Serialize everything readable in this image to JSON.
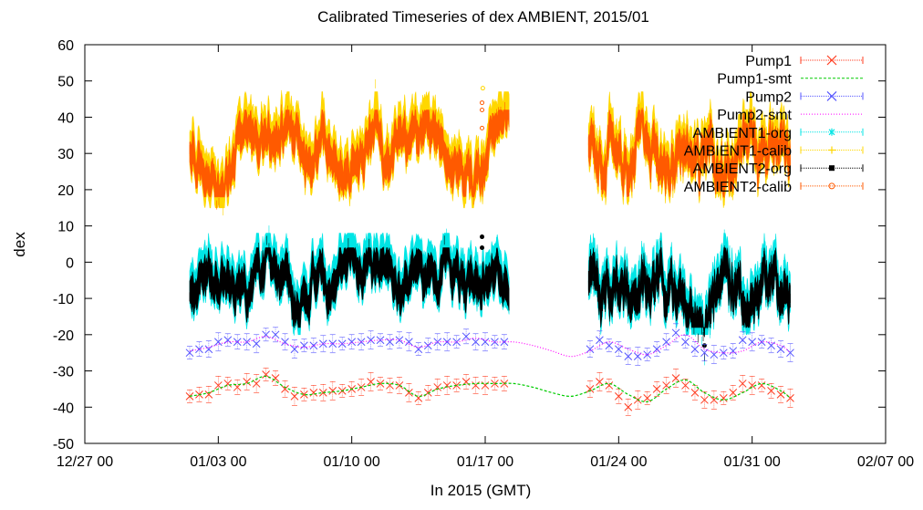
{
  "chart_data": {
    "type": "line",
    "title": "Calibrated Timeseries of dex AMBIENT, 2015/01",
    "xlabel": "In 2015 (GMT)",
    "ylabel": "dex",
    "xlim": [
      "2014-12-27 00:00",
      "2015-02-07 00:00"
    ],
    "ylim": [
      -50,
      60
    ],
    "yticks": [
      -50,
      -40,
      -30,
      -20,
      -10,
      0,
      10,
      20,
      30,
      40,
      50,
      60
    ],
    "xticks": [
      {
        "at": "2014-12-27 00:00",
        "label": "12/27 00"
      },
      {
        "at": "2015-01-03 00:00",
        "label": "01/03 00"
      },
      {
        "at": "2015-01-10 00:00",
        "label": "01/10 00"
      },
      {
        "at": "2015-01-17 00:00",
        "label": "01/17 00"
      },
      {
        "at": "2015-01-24 00:00",
        "label": "01/24 00"
      },
      {
        "at": "2015-01-31 00:00",
        "label": "01/31 00"
      },
      {
        "at": "2015-02-07 00:00",
        "label": "02/07 00"
      }
    ],
    "grid": false,
    "legend_position": "top-right",
    "data_gap": [
      "2015-01-18 06:00",
      "2015-01-22 10:00"
    ],
    "series": [
      {
        "name": "Pump1",
        "color": "#ff3b1f",
        "style": "points-errorbars",
        "marker": "x",
        "x": [
          "2015-01-01 12:00",
          "2015-01-02 00:00",
          "2015-01-02 12:00",
          "2015-01-03 00:00",
          "2015-01-03 12:00",
          "2015-01-04 00:00",
          "2015-01-04 12:00",
          "2015-01-05 00:00",
          "2015-01-05 12:00",
          "2015-01-06 00:00",
          "2015-01-06 12:00",
          "2015-01-07 00:00",
          "2015-01-07 12:00",
          "2015-01-08 00:00",
          "2015-01-08 12:00",
          "2015-01-09 00:00",
          "2015-01-09 12:00",
          "2015-01-10 00:00",
          "2015-01-10 12:00",
          "2015-01-11 00:00",
          "2015-01-11 12:00",
          "2015-01-12 00:00",
          "2015-01-12 12:00",
          "2015-01-13 00:00",
          "2015-01-13 12:00",
          "2015-01-14 00:00",
          "2015-01-14 12:00",
          "2015-01-15 00:00",
          "2015-01-15 12:00",
          "2015-01-16 00:00",
          "2015-01-16 12:00",
          "2015-01-17 00:00",
          "2015-01-17 12:00",
          "2015-01-18 00:00",
          "2015-01-22 12:00",
          "2015-01-23 00:00",
          "2015-01-23 12:00",
          "2015-01-24 00:00",
          "2015-01-24 12:00",
          "2015-01-25 00:00",
          "2015-01-25 12:00",
          "2015-01-26 00:00",
          "2015-01-26 12:00",
          "2015-01-27 00:00",
          "2015-01-27 12:00",
          "2015-01-28 00:00",
          "2015-01-28 12:00",
          "2015-01-29 00:00",
          "2015-01-29 12:00",
          "2015-01-30 00:00",
          "2015-01-30 12:00",
          "2015-01-31 00:00",
          "2015-01-31 12:00",
          "2015-02-01 00:00",
          "2015-02-01 12:00",
          "2015-02-02 00:00"
        ],
        "y": [
          -37,
          -36.5,
          -36.5,
          -34,
          -33.5,
          -34.5,
          -33,
          -33.5,
          -31,
          -32,
          -35,
          -37,
          -36.5,
          -36,
          -36,
          -35.5,
          -35.5,
          -35,
          -34.5,
          -33,
          -33.5,
          -34,
          -34,
          -36,
          -37.5,
          -36,
          -34.5,
          -34,
          -34,
          -33,
          -34,
          -34,
          -33.5,
          -33.5,
          -35,
          -33,
          -34,
          -37,
          -40,
          -38,
          -37.5,
          -35,
          -34,
          -32,
          -34,
          -36,
          -38,
          -38,
          -37.5,
          -36,
          -33.5,
          -34,
          -34,
          -35.5,
          -36.5,
          -37.5
        ]
      },
      {
        "name": "Pump1-smt",
        "color": "#00cc00",
        "style": "dashed-line",
        "x": [
          "2015-01-01 12:00",
          "2015-01-02 12:00",
          "2015-01-03 12:00",
          "2015-01-04 12:00",
          "2015-01-05 12:00",
          "2015-01-06 12:00",
          "2015-01-07 12:00",
          "2015-01-08 12:00",
          "2015-01-09 12:00",
          "2015-01-10 12:00",
          "2015-01-11 12:00",
          "2015-01-12 12:00",
          "2015-01-13 12:00",
          "2015-01-14 12:00",
          "2015-01-15 12:00",
          "2015-01-16 12:00",
          "2015-01-17 12:00",
          "2015-01-18 12:00",
          "2015-01-19 12:00",
          "2015-01-20 12:00",
          "2015-01-21 12:00",
          "2015-01-22 12:00",
          "2015-01-23 12:00",
          "2015-01-24 12:00",
          "2015-01-25 12:00",
          "2015-01-26 12:00",
          "2015-01-27 12:00",
          "2015-01-28 12:00",
          "2015-01-29 12:00",
          "2015-01-30 12:00",
          "2015-01-31 12:00",
          "2015-02-01 12:00",
          "2015-02-02 00:00"
        ],
        "y": [
          -37,
          -36,
          -34,
          -33.5,
          -31.5,
          -34.5,
          -36.5,
          -36,
          -35.5,
          -34.5,
          -33.5,
          -34,
          -37,
          -35,
          -34,
          -33.5,
          -33.5,
          -33.5,
          -34.5,
          -36,
          -37,
          -35.5,
          -33.5,
          -36.5,
          -38.5,
          -35,
          -32.5,
          -36,
          -38,
          -36,
          -33.5,
          -35.5,
          -37.5
        ]
      },
      {
        "name": "Pump2",
        "color": "#5555ff",
        "style": "points-errorbars",
        "marker": "x",
        "x": [
          "2015-01-01 12:00",
          "2015-01-02 00:00",
          "2015-01-02 12:00",
          "2015-01-03 00:00",
          "2015-01-03 12:00",
          "2015-01-04 00:00",
          "2015-01-04 12:00",
          "2015-01-05 00:00",
          "2015-01-05 12:00",
          "2015-01-06 00:00",
          "2015-01-06 12:00",
          "2015-01-07 00:00",
          "2015-01-07 12:00",
          "2015-01-08 00:00",
          "2015-01-08 12:00",
          "2015-01-09 00:00",
          "2015-01-09 12:00",
          "2015-01-10 00:00",
          "2015-01-10 12:00",
          "2015-01-11 00:00",
          "2015-01-11 12:00",
          "2015-01-12 00:00",
          "2015-01-12 12:00",
          "2015-01-13 00:00",
          "2015-01-13 12:00",
          "2015-01-14 00:00",
          "2015-01-14 12:00",
          "2015-01-15 00:00",
          "2015-01-15 12:00",
          "2015-01-16 00:00",
          "2015-01-16 12:00",
          "2015-01-17 00:00",
          "2015-01-17 12:00",
          "2015-01-18 00:00",
          "2015-01-22 12:00",
          "2015-01-23 00:00",
          "2015-01-23 12:00",
          "2015-01-24 00:00",
          "2015-01-24 12:00",
          "2015-01-25 00:00",
          "2015-01-25 12:00",
          "2015-01-26 00:00",
          "2015-01-26 12:00",
          "2015-01-27 00:00",
          "2015-01-27 12:00",
          "2015-01-28 00:00",
          "2015-01-28 12:00",
          "2015-01-29 00:00",
          "2015-01-29 12:00",
          "2015-01-30 00:00",
          "2015-01-30 12:00",
          "2015-01-31 00:00",
          "2015-01-31 12:00",
          "2015-02-01 00:00",
          "2015-02-01 12:00",
          "2015-02-02 00:00"
        ],
        "y": [
          -25,
          -24,
          -24,
          -22,
          -21.5,
          -22,
          -22,
          -22.5,
          -20,
          -20,
          -22,
          -24,
          -23,
          -23,
          -22.5,
          -22.5,
          -22.5,
          -22,
          -22,
          -21.5,
          -21.5,
          -22,
          -21.5,
          -22,
          -24,
          -23,
          -22,
          -22,
          -22,
          -20.5,
          -22,
          -22,
          -22,
          -22,
          -24,
          -21.5,
          -23,
          -24,
          -26,
          -26,
          -25.5,
          -24,
          -22,
          -19.5,
          -22,
          -24,
          -25,
          -25.5,
          -25,
          -24.5,
          -21.5,
          -22,
          -22,
          -23,
          -24,
          -25
        ]
      },
      {
        "name": "Pump2-smt",
        "color": "#ff00ff",
        "style": "dotted-line",
        "x": [
          "2015-01-01 12:00",
          "2015-01-02 12:00",
          "2015-01-03 12:00",
          "2015-01-04 12:00",
          "2015-01-05 12:00",
          "2015-01-06 12:00",
          "2015-01-07 12:00",
          "2015-01-08 12:00",
          "2015-01-09 12:00",
          "2015-01-10 12:00",
          "2015-01-11 12:00",
          "2015-01-12 12:00",
          "2015-01-13 12:00",
          "2015-01-14 12:00",
          "2015-01-15 12:00",
          "2015-01-16 12:00",
          "2015-01-17 12:00",
          "2015-01-18 12:00",
          "2015-01-19 12:00",
          "2015-01-20 12:00",
          "2015-01-21 12:00",
          "2015-01-22 12:00",
          "2015-01-23 12:00",
          "2015-01-24 12:00",
          "2015-01-25 12:00",
          "2015-01-26 12:00",
          "2015-01-27 12:00",
          "2015-01-28 12:00",
          "2015-01-29 12:00",
          "2015-01-30 12:00",
          "2015-01-31 12:00",
          "2015-02-01 12:00",
          "2015-02-02 00:00"
        ],
        "y": [
          -24.5,
          -23.5,
          -22,
          -22,
          -20.5,
          -22.5,
          -23.5,
          -22.5,
          -22.5,
          -22,
          -21.5,
          -21.5,
          -23.5,
          -22,
          -22,
          -21,
          -22,
          -22,
          -23,
          -24.5,
          -26,
          -24.5,
          -22,
          -24,
          -25.5,
          -23,
          -20,
          -24,
          -25,
          -24.5,
          -22,
          -23,
          -25
        ]
      },
      {
        "name": "AMBIENT1-org",
        "color": "#00e5e5",
        "style": "dense-points",
        "envelope": [
          -20,
          8
        ]
      },
      {
        "name": "AMBIENT1-calib",
        "color": "#ffd700",
        "style": "dense-points",
        "envelope": [
          15,
          47
        ]
      },
      {
        "name": "AMBIENT2-org",
        "color": "#000000",
        "style": "dense-points",
        "envelope": [
          -18,
          4
        ]
      },
      {
        "name": "AMBIENT2-calib",
        "color": "#ff5a00",
        "style": "dense-points",
        "envelope": [
          18,
          42
        ]
      }
    ]
  }
}
